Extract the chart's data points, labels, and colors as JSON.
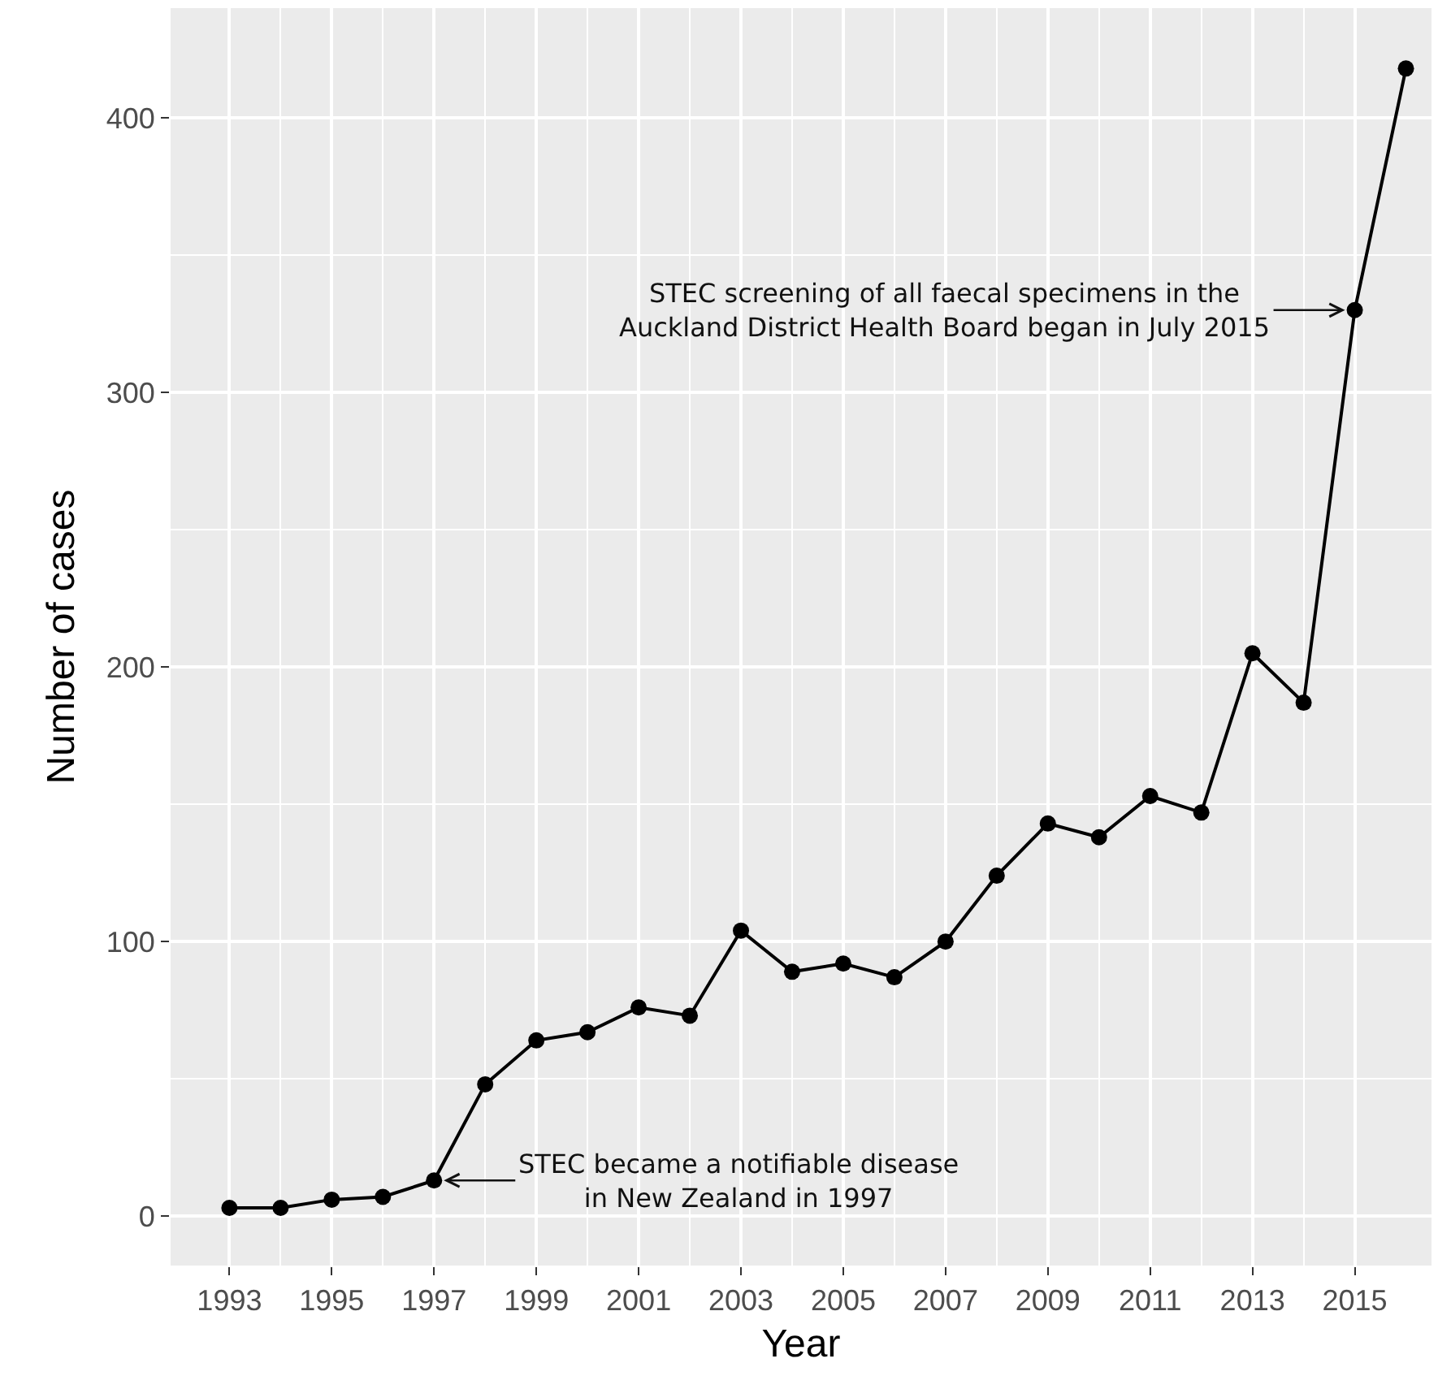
{
  "chart_data": {
    "type": "line",
    "xlabel": "Year",
    "ylabel": "Number of cases",
    "x": [
      1993,
      1994,
      1995,
      1996,
      1997,
      1998,
      1999,
      2000,
      2001,
      2002,
      2003,
      2004,
      2005,
      2006,
      2007,
      2008,
      2009,
      2010,
      2011,
      2012,
      2013,
      2014,
      2015,
      2016
    ],
    "series": [
      {
        "color": "#000000",
        "values": [
          3,
          3,
          6,
          7,
          13,
          48,
          64,
          67,
          76,
          73,
          104,
          89,
          92,
          87,
          100,
          124,
          143,
          138,
          153,
          147,
          205,
          187,
          330,
          418
        ]
      }
    ],
    "xlim": [
      1991.85,
      2016.5
    ],
    "xticks": [
      1993,
      1995,
      1997,
      1999,
      2001,
      2003,
      2005,
      2007,
      2009,
      2011,
      2013,
      2015
    ],
    "ylim": [
      -18,
      440
    ],
    "yticks": [
      0,
      100,
      200,
      300,
      400
    ],
    "grid": true,
    "marker": "circle",
    "line_style": "solid",
    "annotations": [
      {
        "text": "STEC screening of all faecal specimens in the\nAuckland District Health Board began in July 2015",
        "x": 2015,
        "y": 330
      },
      {
        "text": "STEC became a notifiable disease\nin New Zealand in 1997",
        "x": 1997,
        "y": 13
      }
    ]
  }
}
